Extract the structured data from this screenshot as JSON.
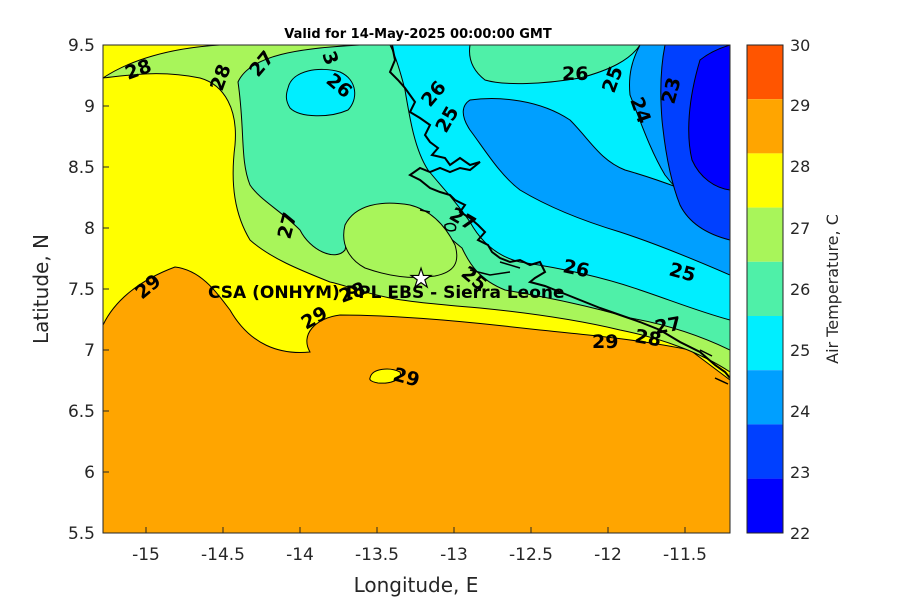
{
  "title": "Valid for 14-May-2025 00:00:00 GMT",
  "xlabel": "Longitude, E",
  "ylabel": "Latitude, N",
  "colorbar_label": "Air Temperature, C",
  "x_ticks": [
    "-15",
    "-14.5",
    "-14",
    "-13.5",
    "-13",
    "-12.5",
    "-12",
    "-11.5"
  ],
  "y_ticks": [
    "9.5",
    "9",
    "8.5",
    "8",
    "7.5",
    "7",
    "6.5",
    "6",
    "5.5"
  ],
  "colorbar_ticks": [
    "30",
    "29",
    "28",
    "27",
    "26",
    "25",
    "24",
    "23",
    "22"
  ],
  "station_label": "CSA (ONHYM) PPL EBS  - Sierra Leone",
  "contour_labels": [
    "28",
    "28",
    "27",
    "26",
    "3",
    "26",
    "25",
    "26",
    "25",
    "24",
    "23",
    "27",
    "27",
    "25",
    "26",
    "25",
    "29",
    "28",
    "29",
    "29",
    "29",
    "28",
    "27"
  ],
  "colors": {
    "t22": "#0000ff",
    "t23": "#0040ff",
    "t24": "#009fff",
    "t25": "#00eeff",
    "t26": "#4ff0a8",
    "t27": "#a8f55a",
    "t28": "#ffff00",
    "t29": "#ffa500",
    "t30": "#ff5500"
  }
}
